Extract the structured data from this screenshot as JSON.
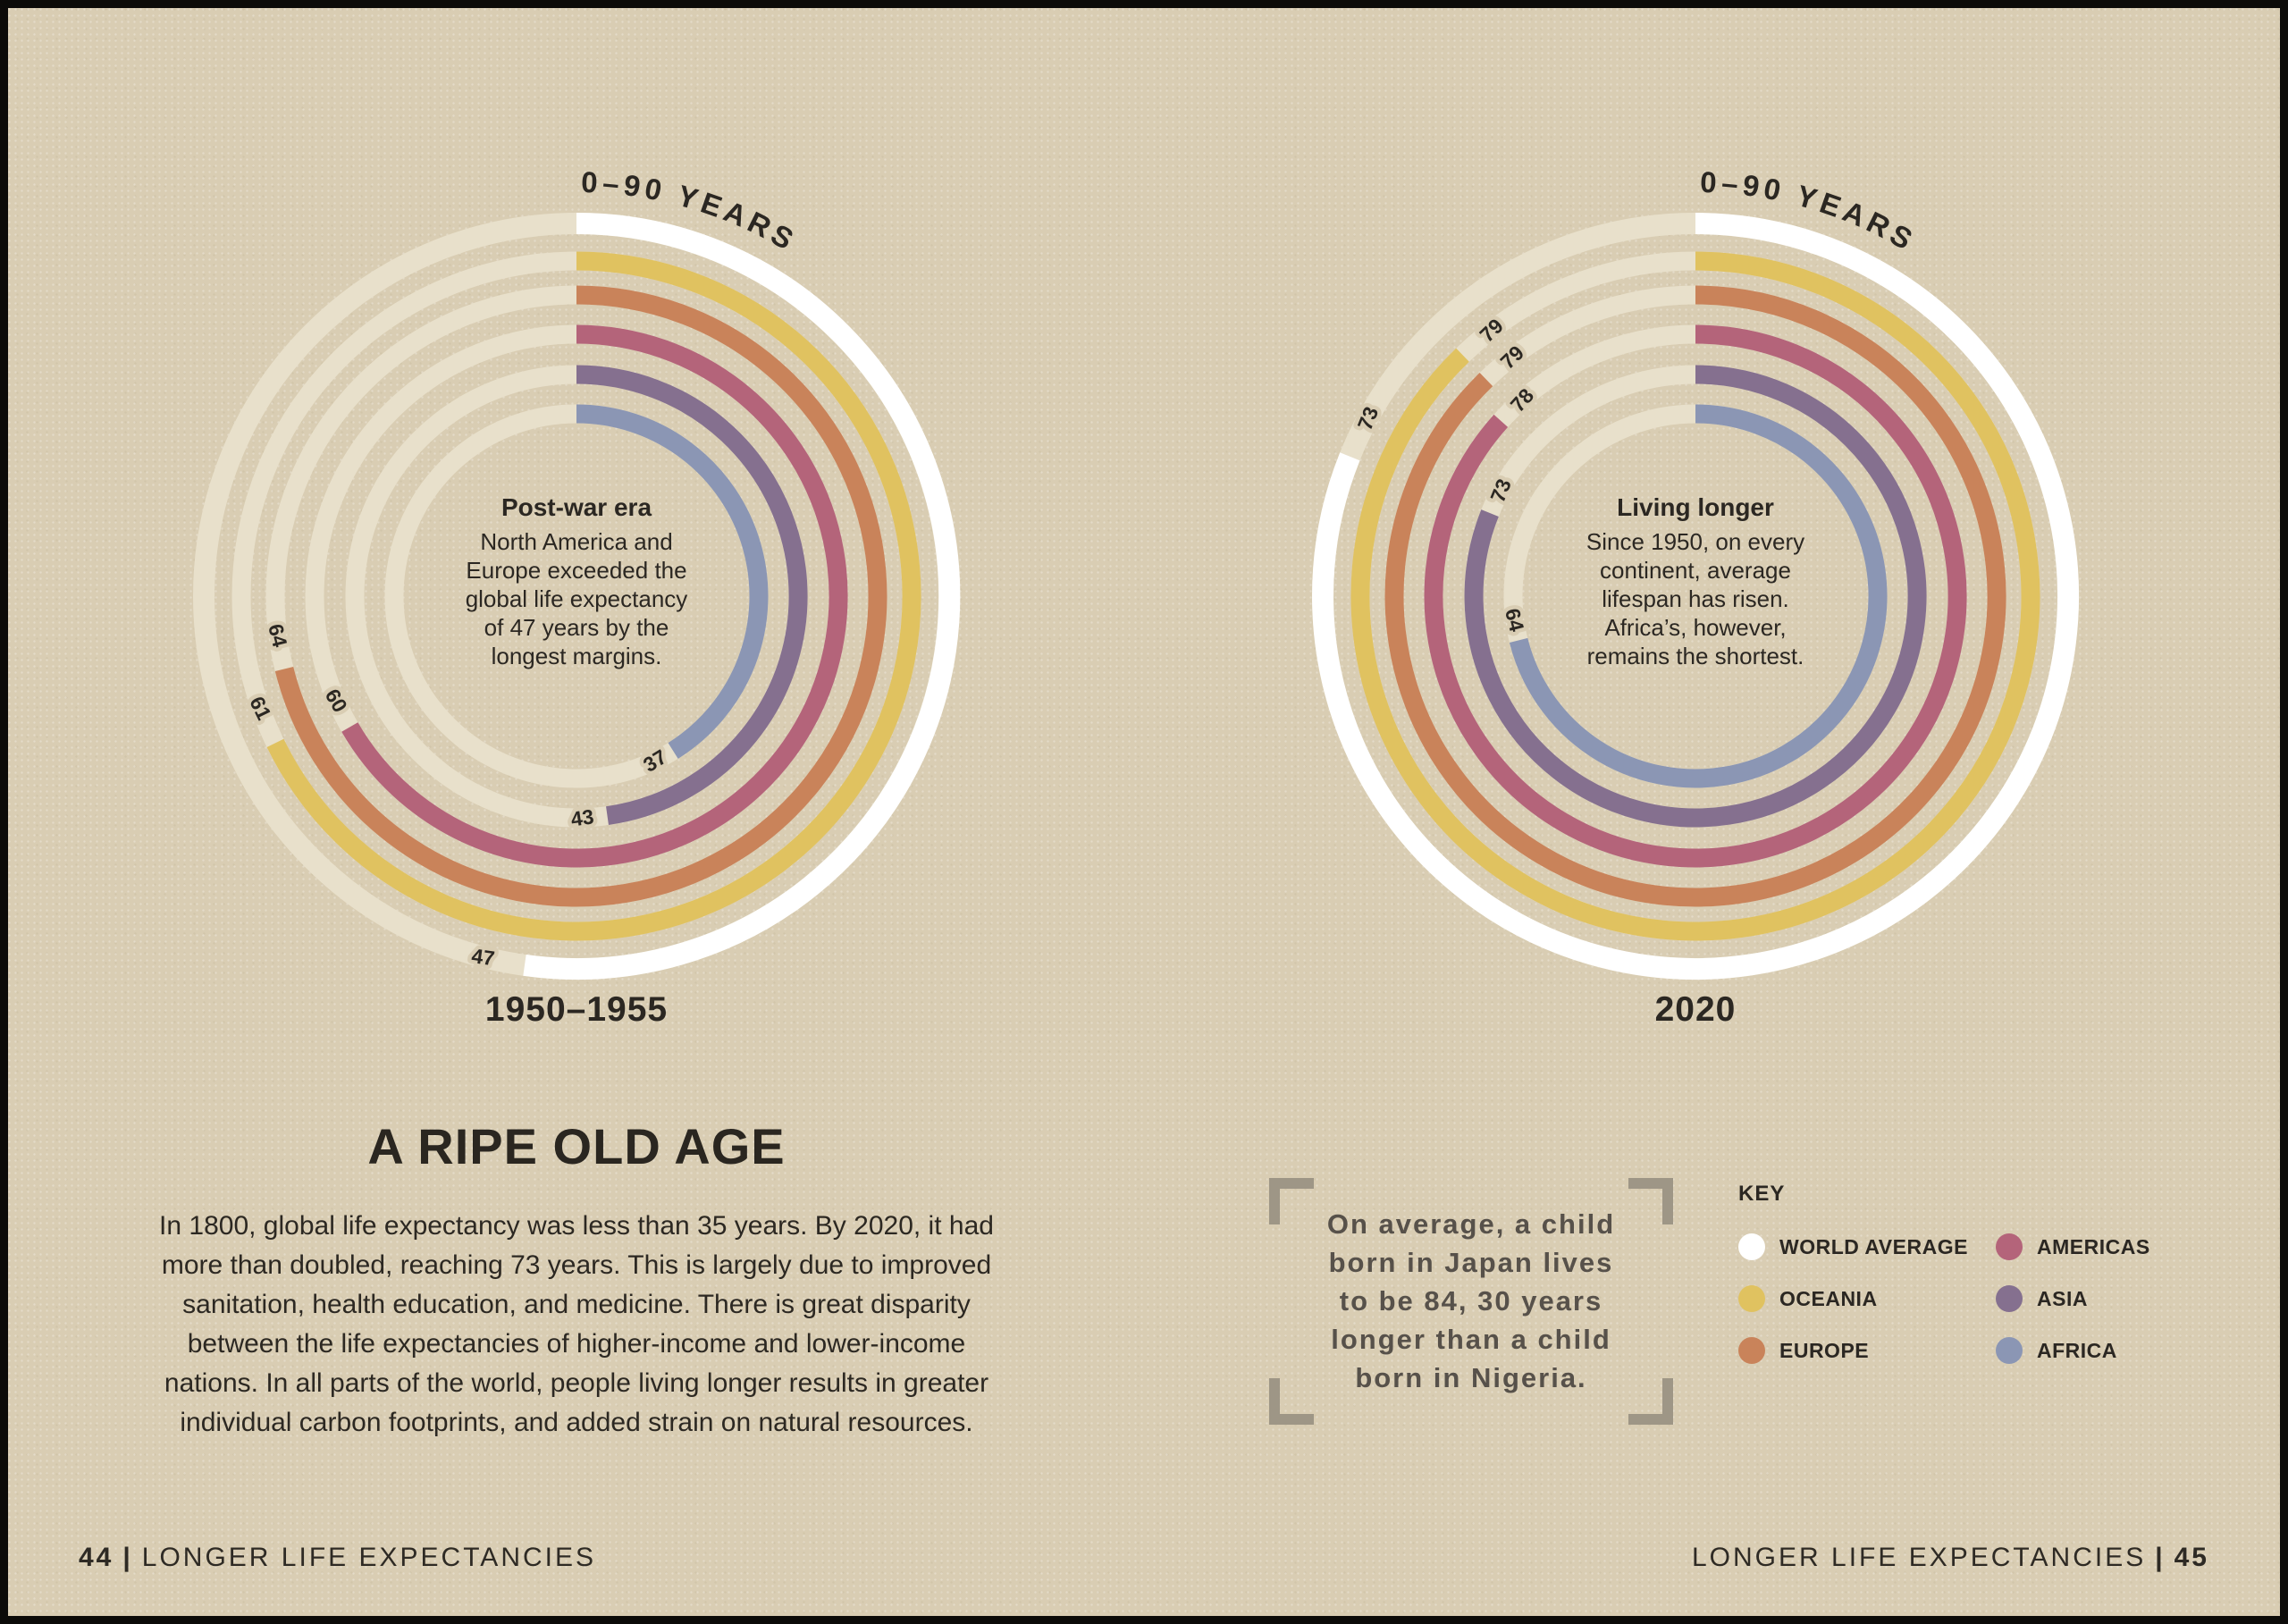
{
  "page": {
    "title": "A RIPE OLD AGE",
    "body_text": "In 1800, global life expectancy was less than 35 years. By 2020, it had\nmore than doubled, reaching 73 years. This is largely due to improved\nsanitation, health education, and medicine. There is great disparity\nbetween the life expectancies of higher-income and lower-income\nnations. In all parts of the world, people living longer results in greater\nindividual carbon footprints, and added strain on natural resources.",
    "footer_left": {
      "page_num": "44",
      "sep": "|",
      "text": "LONGER LIFE EXPECTANCIES"
    },
    "footer_right": {
      "text": "LONGER LIFE EXPECTANCIES",
      "sep": "|",
      "page_num": "45"
    },
    "background": "#d9cdb3"
  },
  "quote": {
    "text": "On average, a child\nborn in Japan lives\nto be 84, 30 years\nlonger than a child\nborn in Nigeria."
  },
  "key": {
    "heading": "KEY",
    "columns": [
      {
        "items": [
          {
            "label": "WORLD AVERAGE",
            "color": "#ffffff"
          },
          {
            "label": "OCEANIA",
            "color": "#e0c260"
          },
          {
            "label": "EUROPE",
            "color": "#c9835a"
          }
        ]
      },
      {
        "items": [
          {
            "label": "AMERICAS",
            "color": "#b4647a"
          },
          {
            "label": "ASIA",
            "color": "#85708f"
          },
          {
            "label": "AFRICA",
            "color": "#8b96b4"
          }
        ]
      }
    ]
  },
  "chart_data": [
    {
      "type": "radial_bar",
      "title_arc": "0–90 YEARS",
      "period": "1950–1955",
      "axis_range": [
        0,
        90
      ],
      "units": "years",
      "center_note": {
        "title": "Post-war era",
        "text": "North America and\nEurope exceeded the\nglobal life expectancy\nof 47 years by the\nlongest margins."
      },
      "series": [
        {
          "name": "World average",
          "value": 47,
          "color": "#ffffff"
        },
        {
          "name": "Oceania",
          "value": 61,
          "color": "#e0c260"
        },
        {
          "name": "Europe",
          "value": 64,
          "color": "#c9835a"
        },
        {
          "name": "Americas",
          "value": 60,
          "color": "#b4647a"
        },
        {
          "name": "Asia",
          "value": 43,
          "color": "#85708f"
        },
        {
          "name": "Africa",
          "value": 37,
          "color": "#8b96b4"
        }
      ]
    },
    {
      "type": "radial_bar",
      "title_arc": "0–90 YEARS",
      "period": "2020",
      "axis_range": [
        0,
        90
      ],
      "units": "years",
      "center_note": {
        "title": "Living longer",
        "text": "Since 1950, on every\ncontinent, average\nlifespan has risen.\nAfrica’s, however,\nremains the shortest."
      },
      "series": [
        {
          "name": "World average",
          "value": 73,
          "color": "#ffffff"
        },
        {
          "name": "Oceania",
          "value": 79,
          "color": "#e0c260"
        },
        {
          "name": "Europe",
          "value": 79,
          "color": "#c9835a"
        },
        {
          "name": "Americas",
          "value": 78,
          "color": "#b4647a"
        },
        {
          "name": "Asia",
          "value": 73,
          "color": "#85708f"
        },
        {
          "name": "Africa",
          "value": 64,
          "color": "#8b96b4"
        }
      ]
    }
  ],
  "style": {
    "ring_radii": [
      417,
      375,
      337,
      293,
      248,
      204
    ],
    "ring_stroke": 21,
    "ring_stroke_world": 24,
    "title_radius": 452,
    "track_color": "#e8e0cb",
    "label_color": "#2b2722",
    "label_halo": "#d9cdb3"
  }
}
